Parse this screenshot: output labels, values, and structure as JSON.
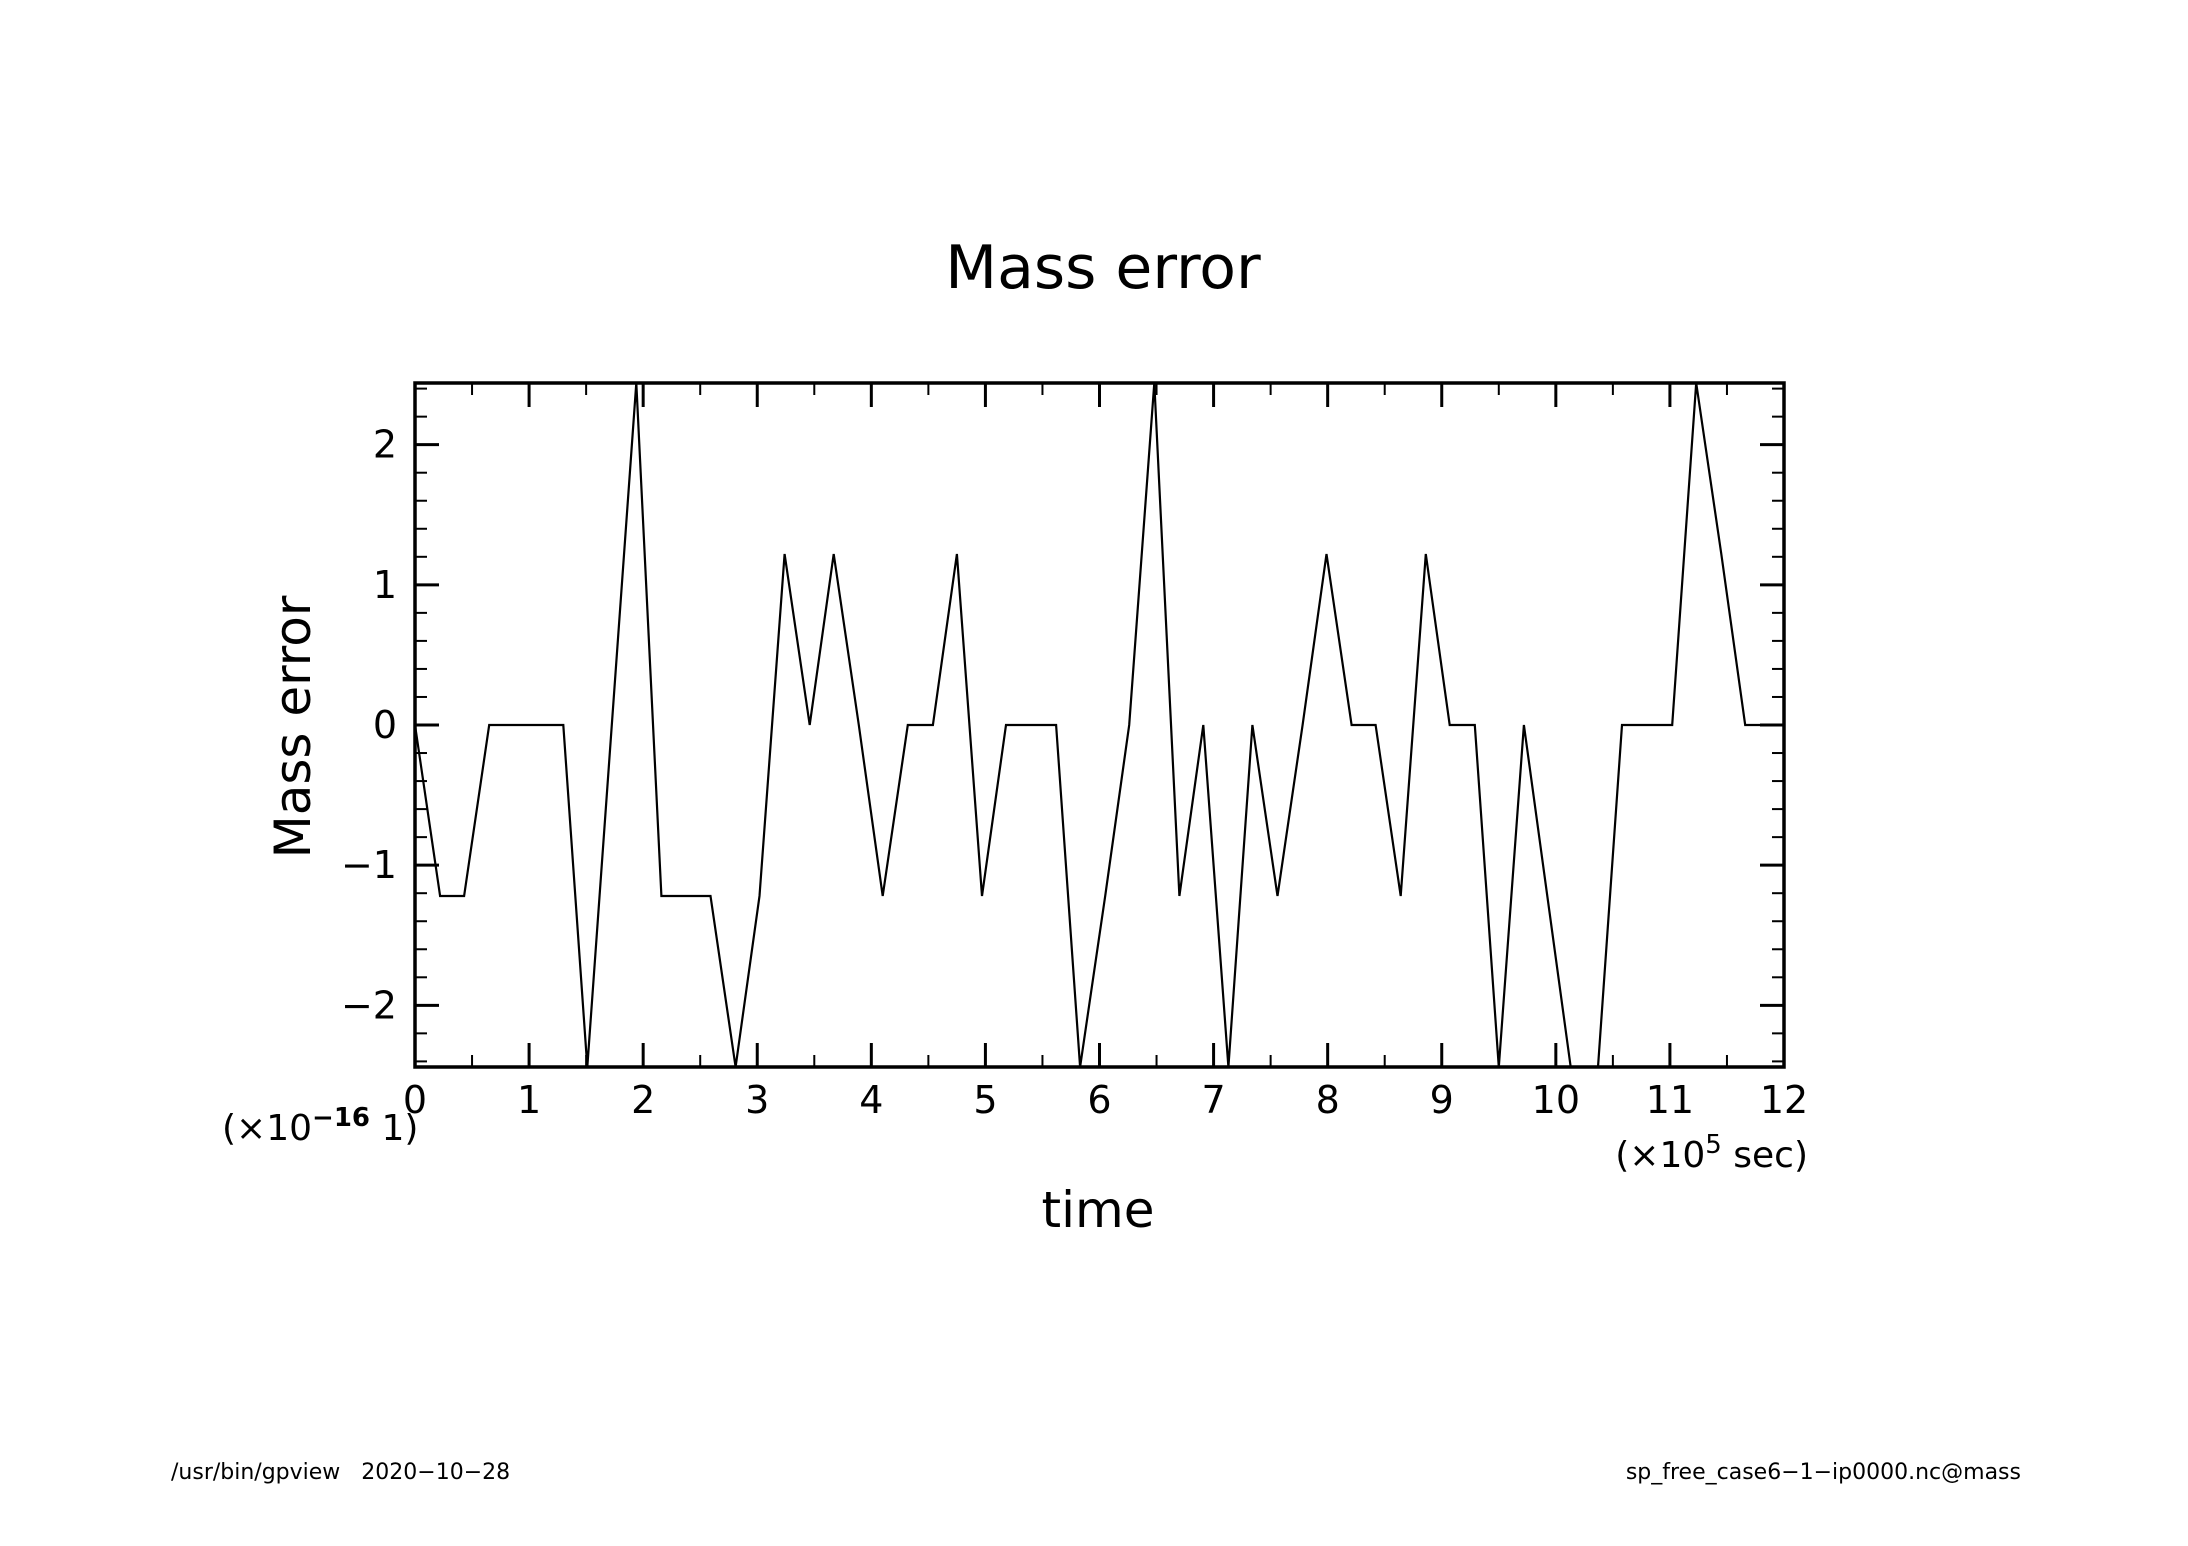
{
  "chart_data": {
    "type": "line",
    "title": "Mass error",
    "xlabel": "time",
    "ylabel": "Mass error",
    "x_multiplier": {
      "prefix": "(×10",
      "exponent": "5",
      "suffix": " sec)"
    },
    "y_multiplier": {
      "prefix": "(×10",
      "exponent": "−16",
      "suffix": " 1)"
    },
    "xlim": [
      0,
      12
    ],
    "ylim": [
      -2.44,
      2.44
    ],
    "xticks": [
      {
        "value": 0,
        "label": "0"
      },
      {
        "value": 1,
        "label": "1"
      },
      {
        "value": 2,
        "label": "2"
      },
      {
        "value": 3,
        "label": "3"
      },
      {
        "value": 4,
        "label": "4"
      },
      {
        "value": 5,
        "label": "5"
      },
      {
        "value": 6,
        "label": "6"
      },
      {
        "value": 7,
        "label": "7"
      },
      {
        "value": 8,
        "label": "8"
      },
      {
        "value": 9,
        "label": "9"
      },
      {
        "value": 10,
        "label": "10"
      },
      {
        "value": 11,
        "label": "11"
      },
      {
        "value": 12,
        "label": "12"
      }
    ],
    "yticks": [
      {
        "value": -2,
        "label": "−2"
      },
      {
        "value": -1,
        "label": "−1"
      },
      {
        "value": 0,
        "label": "0"
      },
      {
        "value": 1,
        "label": "1"
      },
      {
        "value": 2,
        "label": "2"
      }
    ],
    "x": [
      0,
      0.22,
      0.43,
      0.65,
      0.86,
      1.08,
      1.3,
      1.51,
      1.94,
      2.16,
      2.38,
      2.59,
      2.81,
      3.02,
      3.24,
      3.46,
      3.67,
      3.89,
      4.1,
      4.32,
      4.54,
      4.75,
      4.97,
      5.18,
      5.4,
      5.62,
      5.83,
      6.05,
      6.26,
      6.48,
      6.7,
      6.91,
      7.13,
      7.34,
      7.56,
      7.78,
      7.99,
      8.21,
      8.42,
      8.64,
      8.86,
      9.07,
      9.29,
      9.5,
      9.72,
      10.13,
      10.37,
      10.58,
      10.8,
      11.02,
      11.23,
      11.45,
      11.66,
      11.88,
      12.0
    ],
    "y": [
      0,
      -1.22,
      -1.22,
      0,
      0,
      0,
      0,
      -2.44,
      2.44,
      -1.22,
      -1.22,
      -1.22,
      -2.44,
      -1.22,
      1.22,
      0,
      1.22,
      0,
      -1.22,
      0,
      0,
      1.22,
      -1.22,
      0,
      0,
      0,
      -2.44,
      -1.22,
      0,
      2.44,
      -1.22,
      0,
      -2.44,
      0,
      -1.22,
      0,
      1.22,
      0,
      0,
      -1.22,
      1.22,
      0,
      0,
      -2.44,
      0,
      -2.44,
      -2.44,
      0,
      0,
      0,
      2.44,
      1.22,
      0,
      0,
      0
    ],
    "grid": false,
    "color": "#000000"
  },
  "footer": {
    "left": "/usr/bin/gpview   2020−10−28",
    "right": "sp_free_case6−1−ip0000.nc@mass"
  }
}
